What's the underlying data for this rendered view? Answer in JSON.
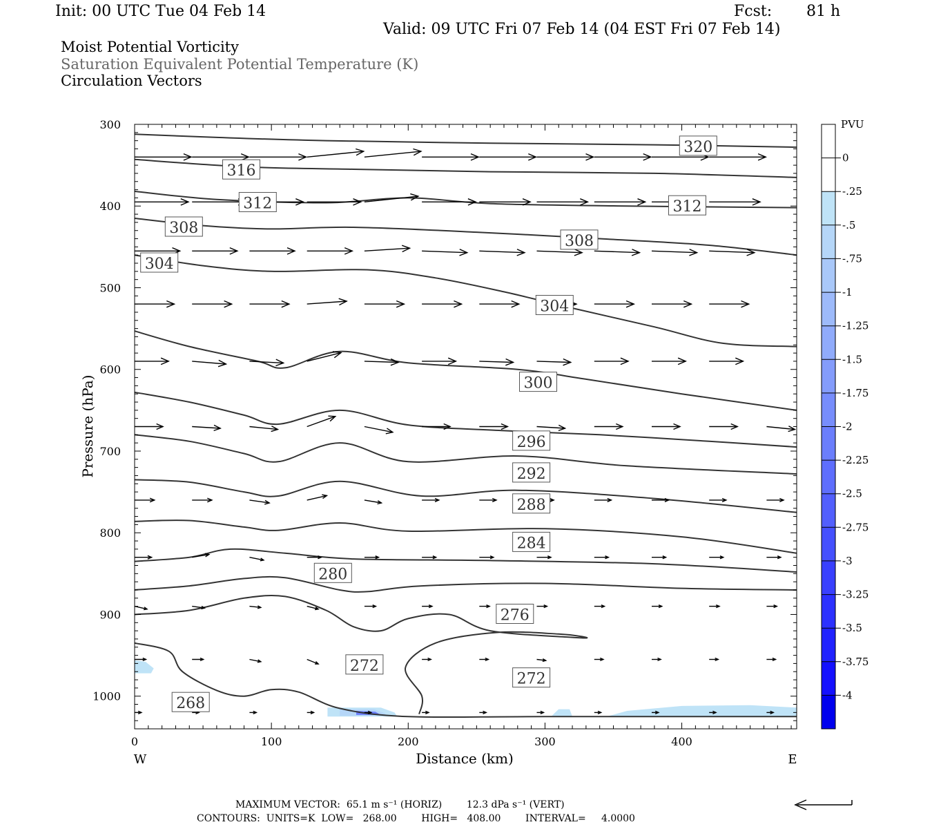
{
  "header": {
    "init": "Init: 00 UTC Tue 04 Feb 14",
    "fcst_label": "Fcst:",
    "fcst_value": "81 h",
    "valid": "Valid: 09 UTC Fri 07 Feb 14 (04 EST Fri 07 Feb 14)",
    "fields": [
      "Moist Potential Vorticity",
      "Saturation Equivalent Potential Temperature (K)",
      "Circulation Vectors"
    ]
  },
  "colors": {
    "contour": "#333333",
    "pv_light": "#bfe3f7",
    "pv_dark": "#0000ee"
  },
  "footer": {
    "max_vector": "MAXIMUM VECTOR:  65.1 m s⁻¹ (HORIZ)        12.3 dPa s⁻¹ (VERT)",
    "contours": "CONTOURS:  UNITS=K  LOW=   268.00        HIGH=   408.00        INTERVAL=     4.0000"
  },
  "chart_data": {
    "type": "cross-section",
    "xlabel": "Distance (km)",
    "ylabel": "Pressure (hPa)",
    "x_left_label": "W",
    "x_right_label": "E",
    "xlim": [
      0,
      484
    ],
    "ylim": [
      300,
      1040
    ],
    "xticks": [
      0,
      100,
      200,
      300,
      400
    ],
    "yticks": [
      300,
      400,
      500,
      600,
      700,
      800,
      900,
      1000
    ],
    "colorbar": {
      "title": "PVU",
      "labels": [
        "0",
        "-.25",
        "-.5",
        "-.75",
        "-1",
        "-1.25",
        "-1.5",
        "-1.75",
        "-2",
        "-2.25",
        "-2.5",
        "-2.75",
        "-3",
        "-3.25",
        "-3.5",
        "-3.75",
        "-4"
      ],
      "colors": [
        "#ffffff",
        "#ffffff",
        "#bfe3f7",
        "#b5d6f8",
        "#a9c8f9",
        "#9dbafa",
        "#90abfb",
        "#849cfb",
        "#778dfc",
        "#6b7efc",
        "#5e6efd",
        "#525ffd",
        "#4550fe",
        "#3940fe",
        "#2c31ff",
        "#2022ff",
        "#1410ff",
        "#0000ee"
      ]
    },
    "contours": [
      {
        "label": "320",
        "points": [
          [
            0,
            312
          ],
          [
            60,
            316
          ],
          [
            140,
            320
          ],
          [
            260,
            323
          ],
          [
            380,
            325
          ],
          [
            484,
            328
          ]
        ]
      },
      {
        "label": "316",
        "points": [
          [
            0,
            343
          ],
          [
            80,
            352
          ],
          [
            160,
            355
          ],
          [
            260,
            358
          ],
          [
            380,
            360
          ],
          [
            484,
            365
          ]
        ]
      },
      {
        "label": "312",
        "points": [
          [
            0,
            382
          ],
          [
            60,
            392
          ],
          [
            140,
            396
          ],
          [
            200,
            390
          ],
          [
            260,
            397
          ],
          [
            360,
            400
          ],
          [
            484,
            402
          ]
        ]
      },
      {
        "label": "308",
        "points": [
          [
            0,
            415
          ],
          [
            50,
            424
          ],
          [
            100,
            428
          ],
          [
            160,
            426
          ],
          [
            250,
            432
          ],
          [
            340,
            440
          ],
          [
            420,
            448
          ],
          [
            484,
            460
          ]
        ]
      },
      {
        "label": "304",
        "points": [
          [
            0,
            460
          ],
          [
            50,
            473
          ],
          [
            100,
            480
          ],
          [
            170,
            478
          ],
          [
            220,
            488
          ],
          [
            270,
            505
          ],
          [
            320,
            525
          ],
          [
            380,
            548
          ],
          [
            430,
            568
          ],
          [
            484,
            572
          ]
        ]
      },
      {
        "label": "300",
        "points": [
          [
            0,
            553
          ],
          [
            40,
            572
          ],
          [
            90,
            590
          ],
          [
            110,
            598
          ],
          [
            150,
            578
          ],
          [
            200,
            592
          ],
          [
            280,
            600
          ],
          [
            330,
            612
          ],
          [
            400,
            630
          ],
          [
            484,
            650
          ]
        ]
      },
      {
        "label": "296",
        "points": [
          [
            0,
            628
          ],
          [
            40,
            640
          ],
          [
            80,
            656
          ],
          [
            105,
            667
          ],
          [
            150,
            650
          ],
          [
            200,
            668
          ],
          [
            270,
            675
          ],
          [
            340,
            680
          ],
          [
            420,
            688
          ],
          [
            484,
            695
          ]
        ]
      },
      {
        "label": "292",
        "points": [
          [
            0,
            680
          ],
          [
            40,
            688
          ],
          [
            80,
            703
          ],
          [
            105,
            713
          ],
          [
            150,
            690
          ],
          [
            200,
            713
          ],
          [
            280,
            706
          ],
          [
            360,
            718
          ],
          [
            484,
            728
          ]
        ]
      },
      {
        "label": "288",
        "points": [
          [
            0,
            735
          ],
          [
            40,
            738
          ],
          [
            80,
            750
          ],
          [
            105,
            755
          ],
          [
            150,
            737
          ],
          [
            210,
            755
          ],
          [
            280,
            748
          ],
          [
            380,
            758
          ],
          [
            484,
            775
          ]
        ]
      },
      {
        "label": "284",
        "points": [
          [
            0,
            786
          ],
          [
            40,
            785
          ],
          [
            80,
            793
          ],
          [
            105,
            797
          ],
          [
            150,
            788
          ],
          [
            200,
            798
          ],
          [
            300,
            795
          ],
          [
            400,
            805
          ],
          [
            484,
            825
          ]
        ]
      },
      {
        "label": "280",
        "points": [
          [
            0,
            835
          ],
          [
            40,
            830
          ],
          [
            70,
            820
          ],
          [
            110,
            825
          ],
          [
            160,
            832
          ],
          [
            260,
            834
          ],
          [
            380,
            838
          ],
          [
            484,
            848
          ]
        ]
      },
      {
        "label": "276",
        "points": [
          [
            0,
            870
          ],
          [
            40,
            865
          ],
          [
            80,
            856
          ],
          [
            110,
            855
          ],
          [
            150,
            870
          ],
          [
            170,
            872
          ],
          [
            210,
            865
          ],
          [
            300,
            862
          ],
          [
            400,
            868
          ],
          [
            484,
            870
          ]
        ]
      },
      {
        "label": "272",
        "points": [
          [
            0,
            900
          ],
          [
            40,
            895
          ],
          [
            80,
            880
          ],
          [
            110,
            878
          ],
          [
            140,
            895
          ],
          [
            160,
            915
          ],
          [
            180,
            920
          ],
          [
            200,
            905
          ],
          [
            230,
            900
          ],
          [
            260,
            920
          ],
          [
            320,
            928
          ],
          [
            330,
            928
          ],
          [
            310,
            924
          ],
          [
            265,
            922
          ],
          [
            220,
            935
          ],
          [
            198,
            965
          ],
          [
            210,
            1000
          ],
          [
            208,
            1022
          ]
        ]
      },
      {
        "label": "268",
        "points": [
          [
            0,
            935
          ],
          [
            25,
            945
          ],
          [
            35,
            970
          ],
          [
            60,
            993
          ],
          [
            80,
            1000
          ],
          [
            100,
            992
          ],
          [
            120,
            995
          ],
          [
            150,
            1015
          ],
          [
            200,
            1025
          ],
          [
            300,
            1025
          ],
          [
            484,
            1025
          ]
        ]
      }
    ],
    "contour_labels": [
      {
        "text": "320",
        "x": 412,
        "y": 327
      },
      {
        "text": "316",
        "x": 78,
        "y": 356
      },
      {
        "text": "312",
        "x": 90,
        "y": 396
      },
      {
        "text": "312",
        "x": 404,
        "y": 400
      },
      {
        "text": "308",
        "x": 36,
        "y": 426
      },
      {
        "text": "308",
        "x": 325,
        "y": 442
      },
      {
        "text": "304",
        "x": 18,
        "y": 470
      },
      {
        "text": "304",
        "x": 307,
        "y": 522
      },
      {
        "text": "300",
        "x": 295,
        "y": 616
      },
      {
        "text": "296",
        "x": 290,
        "y": 688
      },
      {
        "text": "292",
        "x": 290,
        "y": 727
      },
      {
        "text": "288",
        "x": 290,
        "y": 765
      },
      {
        "text": "284",
        "x": 290,
        "y": 812
      },
      {
        "text": "280",
        "x": 145,
        "y": 850
      },
      {
        "text": "276",
        "x": 278,
        "y": 900
      },
      {
        "text": "272",
        "x": 168,
        "y": 962
      },
      {
        "text": "272",
        "x": 290,
        "y": 978
      },
      {
        "text": "268",
        "x": 41,
        "y": 1008
      }
    ],
    "pv_shading": [
      {
        "level": "-.25",
        "points": [
          [
            0,
            956
          ],
          [
            8,
            958
          ],
          [
            14,
            966
          ],
          [
            12,
            972
          ],
          [
            0,
            972
          ]
        ]
      },
      {
        "level": "-.25",
        "points": [
          [
            141,
            1014
          ],
          [
            180,
            1014
          ],
          [
            190,
            1020
          ],
          [
            192,
            1025
          ],
          [
            141,
            1025
          ]
        ]
      },
      {
        "level": "-.5",
        "points": [
          [
            150,
            1016
          ],
          [
            175,
            1016
          ],
          [
            183,
            1021
          ],
          [
            184,
            1024
          ],
          [
            150,
            1024
          ]
        ]
      },
      {
        "level": "-2",
        "points": [
          [
            162,
            1018
          ],
          [
            176,
            1019
          ],
          [
            180,
            1023
          ],
          [
            162,
            1023
          ]
        ]
      },
      {
        "level": "-.25",
        "points": [
          [
            305,
            1024
          ],
          [
            310,
            1016
          ],
          [
            318,
            1016
          ],
          [
            320,
            1025
          ]
        ]
      },
      {
        "level": "-.25",
        "points": [
          [
            345,
            1025
          ],
          [
            360,
            1018
          ],
          [
            400,
            1012
          ],
          [
            450,
            1011
          ],
          [
            484,
            1014
          ],
          [
            484,
            1025
          ]
        ]
      }
    ],
    "vectors": {
      "rows": [
        {
          "p": 340,
          "u": [
            1,
            1,
            1,
            1,
            1,
            1,
            1,
            1,
            1,
            1,
            1,
            1
          ],
          "w": [
            0,
            0,
            0,
            -0.1,
            -0.1,
            0,
            0,
            0,
            0,
            0,
            0,
            0
          ]
        },
        {
          "p": 395,
          "u": [
            0.95,
            0.95,
            0.95,
            0.95,
            0.95,
            0.95,
            0.9,
            0.9,
            0.9,
            0.9,
            0.9,
            0.9
          ],
          "w": [
            0,
            0,
            0,
            0,
            -0.1,
            0,
            0,
            0,
            0,
            0,
            0,
            0
          ]
        },
        {
          "p": 455,
          "u": [
            0.8,
            0.8,
            0.8,
            0.8,
            0.8,
            0.8,
            0.8,
            0.8,
            0.8,
            0.8,
            0.8,
            0.8
          ],
          "w": [
            0,
            0,
            0,
            0,
            -0.05,
            0.03,
            0.03,
            0.03,
            0.03,
            0.03,
            0.03,
            0.03
          ]
        },
        {
          "p": 520,
          "u": [
            0.7,
            0.7,
            0.7,
            0.7,
            0.7,
            0.7,
            0.7,
            0.7,
            0.7,
            0.7,
            0.7,
            0.7
          ],
          "w": [
            0,
            0,
            0,
            -0.05,
            0,
            0,
            0,
            0,
            0,
            0,
            0,
            0
          ]
        },
        {
          "p": 590,
          "u": [
            0.6,
            0.6,
            0.6,
            0.6,
            0.6,
            0.6,
            0.6,
            0.6,
            0.6,
            0.6,
            0.6,
            0.6
          ],
          "w": [
            0,
            0.05,
            0.03,
            -0.15,
            0.02,
            0,
            0.02,
            0.02,
            0,
            0,
            0,
            0
          ]
        },
        {
          "p": 670,
          "u": [
            0.5,
            0.5,
            0.5,
            0.5,
            0.5,
            0.5,
            0.5,
            0.5,
            0.5,
            0.5,
            0.5,
            0.5
          ],
          "w": [
            0,
            0.03,
            0.05,
            -0.18,
            0.1,
            0,
            0,
            0.03,
            0,
            0,
            0,
            0.05
          ]
        },
        {
          "p": 760,
          "u": [
            0.35,
            0.35,
            0.35,
            0.35,
            0.3,
            0.3,
            0.3,
            0.3,
            0.3,
            0.3,
            0.3,
            0.3
          ],
          "w": [
            0,
            0,
            0.05,
            -0.08,
            0.05,
            0,
            0,
            0,
            0,
            0,
            0,
            0
          ]
        },
        {
          "p": 830,
          "u": [
            0.3,
            0.3,
            0.25,
            0.25,
            0.25,
            0.25,
            0.25,
            0.25,
            0.25,
            0.25,
            0.25,
            0.25
          ],
          "w": [
            0,
            -0.05,
            0.05,
            0,
            0,
            0,
            0,
            0,
            0,
            0,
            0,
            0
          ]
        },
        {
          "p": 890,
          "u": [
            0.22,
            0.22,
            0.2,
            0.2,
            0.2,
            0.18,
            0.18,
            0.18,
            0.18,
            0.18,
            0.18,
            0.18
          ],
          "w": [
            0.05,
            0.03,
            0.02,
            0.05,
            0,
            0,
            0,
            0,
            0,
            0,
            0,
            0
          ]
        },
        {
          "p": 955,
          "u": [
            0.2,
            0.2,
            0.2,
            0.2,
            0.18,
            0.16,
            0.16,
            0.16,
            0.16,
            0.16,
            0.16,
            0.16
          ],
          "w": [
            0,
            0,
            0.04,
            0.08,
            0,
            0,
            0,
            0.02,
            0,
            0,
            0,
            0
          ]
        },
        {
          "p": 1020,
          "u": [
            0.12,
            0.12,
            0.12,
            0.12,
            0.12,
            0.12,
            0.12,
            0.12,
            0.12,
            0.12,
            0.12,
            0.12
          ],
          "w": [
            0,
            0,
            0,
            0,
            0,
            0,
            0,
            0,
            0,
            0,
            0,
            0
          ]
        }
      ],
      "x_positions": [
        0,
        42,
        84,
        126,
        168,
        210,
        252,
        294,
        336,
        378,
        420,
        462
      ]
    }
  }
}
